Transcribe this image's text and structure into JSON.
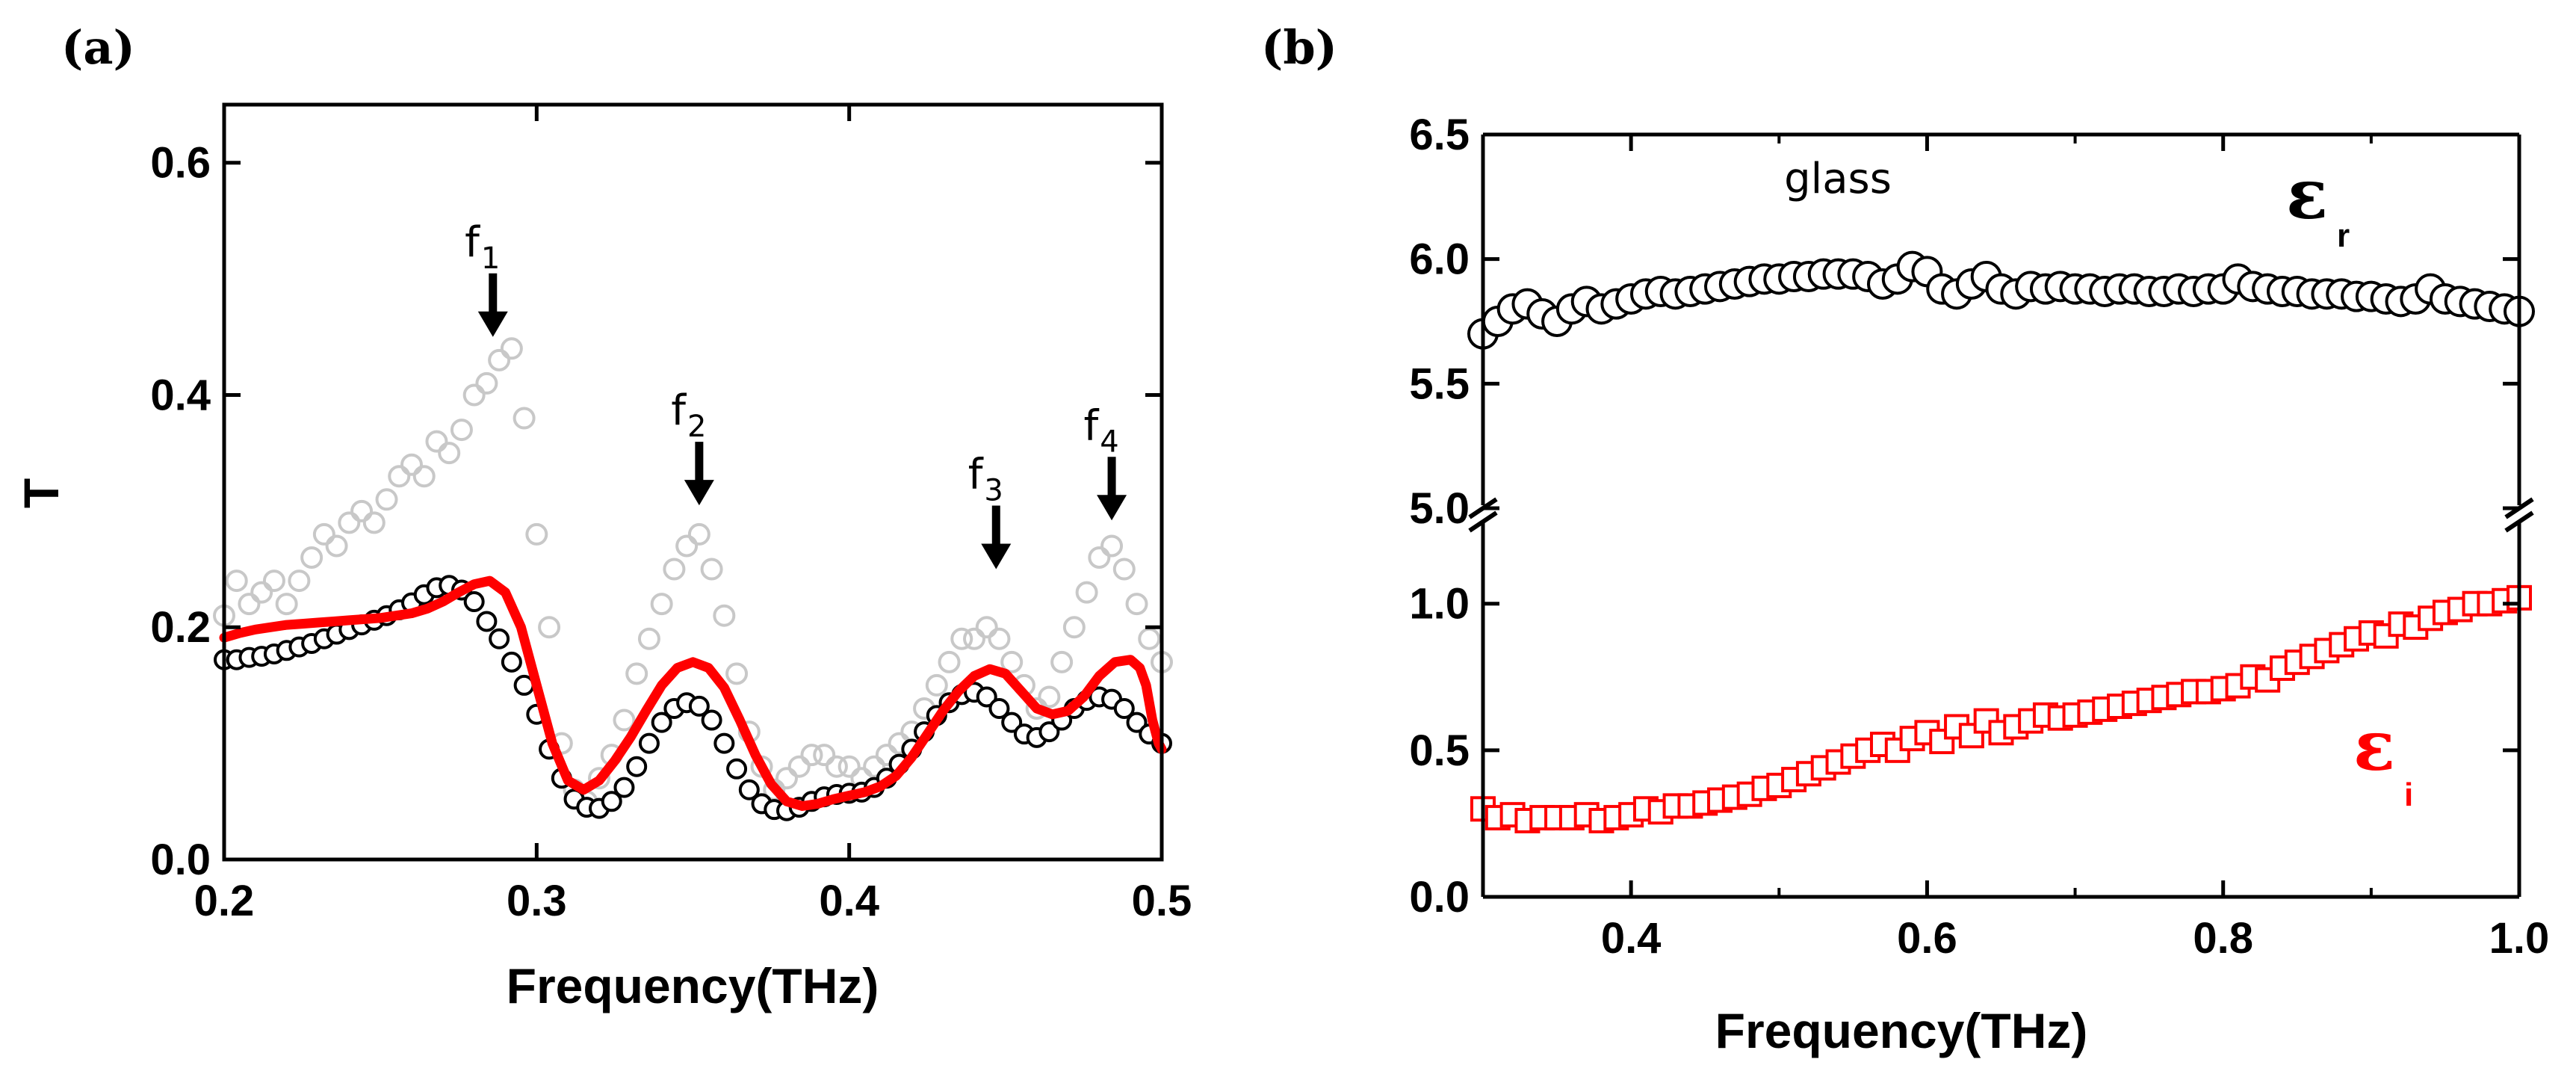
{
  "chart_data": [
    {
      "panel_label": "(a)",
      "type": "scatter",
      "xlabel": "Frequency(THz)",
      "ylabel": "T",
      "xlim": [
        0.2,
        0.5
      ],
      "ylim": [
        0.0,
        0.65
      ],
      "xticks": [
        "0.2",
        "0.3",
        "0.4",
        "0.5"
      ],
      "yticks": [
        "0.0",
        "0.2",
        "0.4",
        "0.6"
      ],
      "xtick_values": [
        0.2,
        0.3,
        0.4,
        0.5
      ],
      "ytick_values": [
        0.0,
        0.2,
        0.4,
        0.6
      ],
      "series": [
        {
          "name": "transmission (grey circles)",
          "style": "open-circle",
          "color": "#c8c8c8",
          "x": [
            0.2,
            0.204,
            0.208,
            0.212,
            0.216,
            0.22,
            0.224,
            0.228,
            0.232,
            0.236,
            0.24,
            0.244,
            0.248,
            0.252,
            0.256,
            0.26,
            0.264,
            0.268,
            0.272,
            0.276,
            0.28,
            0.284,
            0.288,
            0.292,
            0.296,
            0.3,
            0.304,
            0.308,
            0.312,
            0.316,
            0.32,
            0.324,
            0.328,
            0.332,
            0.336,
            0.34,
            0.344,
            0.348,
            0.352,
            0.356,
            0.36,
            0.364,
            0.368,
            0.372,
            0.376,
            0.38,
            0.384,
            0.388,
            0.392,
            0.396,
            0.4,
            0.404,
            0.408,
            0.412,
            0.416,
            0.42,
            0.424,
            0.428,
            0.432,
            0.436,
            0.44,
            0.444,
            0.448,
            0.452,
            0.456,
            0.46,
            0.464,
            0.468,
            0.472,
            0.476,
            0.48,
            0.484,
            0.488,
            0.492,
            0.496,
            0.5
          ],
          "values": [
            0.21,
            0.24,
            0.22,
            0.23,
            0.24,
            0.22,
            0.24,
            0.26,
            0.28,
            0.27,
            0.29,
            0.3,
            0.29,
            0.31,
            0.33,
            0.34,
            0.33,
            0.36,
            0.35,
            0.37,
            0.4,
            0.41,
            0.43,
            0.44,
            0.38,
            0.28,
            0.2,
            0.1,
            0.06,
            0.05,
            0.07,
            0.09,
            0.12,
            0.16,
            0.19,
            0.22,
            0.25,
            0.27,
            0.28,
            0.25,
            0.21,
            0.16,
            0.11,
            0.08,
            0.06,
            0.07,
            0.08,
            0.09,
            0.09,
            0.08,
            0.08,
            0.07,
            0.08,
            0.09,
            0.1,
            0.11,
            0.13,
            0.15,
            0.17,
            0.19,
            0.19,
            0.2,
            0.19,
            0.17,
            0.15,
            0.13,
            0.14,
            0.17,
            0.2,
            0.23,
            0.26,
            0.27,
            0.25,
            0.22,
            0.19,
            0.17
          ]
        },
        {
          "name": "transmission (black circles)",
          "style": "open-circle",
          "color": "#000000",
          "x": [
            0.2,
            0.204,
            0.208,
            0.212,
            0.216,
            0.22,
            0.224,
            0.228,
            0.232,
            0.236,
            0.24,
            0.244,
            0.248,
            0.252,
            0.256,
            0.26,
            0.264,
            0.268,
            0.272,
            0.276,
            0.28,
            0.284,
            0.288,
            0.292,
            0.296,
            0.3,
            0.304,
            0.308,
            0.312,
            0.316,
            0.32,
            0.324,
            0.328,
            0.332,
            0.336,
            0.34,
            0.344,
            0.348,
            0.352,
            0.356,
            0.36,
            0.364,
            0.368,
            0.372,
            0.376,
            0.38,
            0.384,
            0.388,
            0.392,
            0.396,
            0.4,
            0.404,
            0.408,
            0.412,
            0.416,
            0.42,
            0.424,
            0.428,
            0.432,
            0.436,
            0.44,
            0.444,
            0.448,
            0.452,
            0.456,
            0.46,
            0.464,
            0.468,
            0.472,
            0.476,
            0.48,
            0.484,
            0.488,
            0.492,
            0.496,
            0.5
          ],
          "values": [
            0.172,
            0.172,
            0.174,
            0.175,
            0.177,
            0.18,
            0.183,
            0.186,
            0.19,
            0.194,
            0.198,
            0.202,
            0.206,
            0.21,
            0.215,
            0.221,
            0.228,
            0.234,
            0.236,
            0.232,
            0.222,
            0.205,
            0.19,
            0.17,
            0.15,
            0.125,
            0.095,
            0.07,
            0.052,
            0.045,
            0.044,
            0.05,
            0.062,
            0.08,
            0.1,
            0.118,
            0.13,
            0.135,
            0.132,
            0.12,
            0.1,
            0.078,
            0.06,
            0.048,
            0.043,
            0.042,
            0.045,
            0.05,
            0.054,
            0.056,
            0.057,
            0.058,
            0.062,
            0.07,
            0.082,
            0.095,
            0.11,
            0.124,
            0.135,
            0.142,
            0.144,
            0.14,
            0.13,
            0.118,
            0.108,
            0.105,
            0.11,
            0.12,
            0.13,
            0.137,
            0.14,
            0.138,
            0.13,
            0.118,
            0.108,
            0.1
          ]
        },
        {
          "name": "fit (red line)",
          "style": "line",
          "color": "#ff0000",
          "x": [
            0.2,
            0.205,
            0.21,
            0.215,
            0.22,
            0.225,
            0.23,
            0.235,
            0.24,
            0.245,
            0.25,
            0.255,
            0.26,
            0.265,
            0.27,
            0.275,
            0.28,
            0.285,
            0.29,
            0.295,
            0.3,
            0.305,
            0.31,
            0.315,
            0.32,
            0.325,
            0.33,
            0.335,
            0.34,
            0.345,
            0.35,
            0.355,
            0.36,
            0.365,
            0.37,
            0.375,
            0.38,
            0.385,
            0.39,
            0.395,
            0.4,
            0.405,
            0.41,
            0.415,
            0.42,
            0.425,
            0.43,
            0.435,
            0.44,
            0.445,
            0.45,
            0.455,
            0.46,
            0.465,
            0.47,
            0.475,
            0.48,
            0.485,
            0.49,
            0.493,
            0.495,
            0.497,
            0.499,
            0.5
          ],
          "values": [
            0.191,
            0.195,
            0.198,
            0.2,
            0.202,
            0.203,
            0.204,
            0.205,
            0.206,
            0.207,
            0.208,
            0.21,
            0.212,
            0.216,
            0.222,
            0.23,
            0.237,
            0.24,
            0.23,
            0.2,
            0.15,
            0.1,
            0.068,
            0.06,
            0.068,
            0.085,
            0.105,
            0.128,
            0.15,
            0.165,
            0.17,
            0.165,
            0.148,
            0.12,
            0.09,
            0.065,
            0.05,
            0.046,
            0.048,
            0.052,
            0.055,
            0.058,
            0.063,
            0.072,
            0.088,
            0.108,
            0.128,
            0.145,
            0.158,
            0.164,
            0.16,
            0.145,
            0.13,
            0.125,
            0.128,
            0.14,
            0.158,
            0.17,
            0.172,
            0.165,
            0.15,
            0.12,
            0.1,
            0.095
          ]
        }
      ],
      "annotations": [
        {
          "label": "f",
          "sub": "1",
          "x": 0.286,
          "y_arrow_tip": 0.45
        },
        {
          "label": "f",
          "sub": "2",
          "x": 0.352,
          "y_arrow_tip": 0.305
        },
        {
          "label": "f",
          "sub": "3",
          "x": 0.447,
          "y_arrow_tip": 0.25
        },
        {
          "label": "f",
          "sub": "4",
          "x": 0.484,
          "y_arrow_tip": 0.292
        }
      ]
    },
    {
      "panel_label": "(b)",
      "type": "scatter",
      "xlabel": "Frequency(THz)",
      "ylabel": "",
      "xlim": [
        0.3,
        1.0
      ],
      "broken_y_axis": true,
      "upper_ylim": [
        5.0,
        6.5
      ],
      "lower_ylim": [
        0.0,
        1.3
      ],
      "xticks": [
        "0.4",
        "0.6",
        "0.8",
        "1.0"
      ],
      "xtick_values": [
        0.4,
        0.6,
        0.8,
        1.0
      ],
      "upper_yticks": [
        "5.0",
        "5.5",
        "6.0",
        "6.5"
      ],
      "upper_ytick_values": [
        5.0,
        5.5,
        6.0,
        6.5
      ],
      "lower_yticks": [
        "0.0",
        "0.5",
        "1.0"
      ],
      "lower_ytick_values": [
        0.0,
        0.5,
        1.0
      ],
      "text_label": "glass",
      "series": [
        {
          "name": "ε_r",
          "label_main": "ε",
          "label_sub": "r",
          "style": "open-circle",
          "color": "#000000",
          "axis": "upper",
          "x": [
            0.3,
            0.31,
            0.32,
            0.33,
            0.34,
            0.35,
            0.36,
            0.37,
            0.38,
            0.39,
            0.4,
            0.41,
            0.42,
            0.43,
            0.44,
            0.45,
            0.46,
            0.47,
            0.48,
            0.49,
            0.5,
            0.51,
            0.52,
            0.53,
            0.54,
            0.55,
            0.56,
            0.57,
            0.58,
            0.59,
            0.6,
            0.61,
            0.62,
            0.63,
            0.64,
            0.65,
            0.66,
            0.67,
            0.68,
            0.69,
            0.7,
            0.71,
            0.72,
            0.73,
            0.74,
            0.75,
            0.76,
            0.77,
            0.78,
            0.79,
            0.8,
            0.81,
            0.82,
            0.83,
            0.84,
            0.85,
            0.86,
            0.87,
            0.88,
            0.89,
            0.9,
            0.91,
            0.92,
            0.93,
            0.94,
            0.95,
            0.96,
            0.97,
            0.98,
            0.99,
            1.0
          ],
          "values": [
            5.7,
            5.75,
            5.8,
            5.82,
            5.78,
            5.75,
            5.8,
            5.83,
            5.8,
            5.82,
            5.84,
            5.86,
            5.87,
            5.86,
            5.87,
            5.88,
            5.89,
            5.9,
            5.91,
            5.92,
            5.92,
            5.93,
            5.93,
            5.94,
            5.94,
            5.94,
            5.93,
            5.9,
            5.92,
            5.97,
            5.95,
            5.88,
            5.86,
            5.9,
            5.93,
            5.88,
            5.86,
            5.89,
            5.88,
            5.89,
            5.88,
            5.88,
            5.87,
            5.88,
            5.88,
            5.87,
            5.87,
            5.88,
            5.87,
            5.88,
            5.88,
            5.92,
            5.89,
            5.88,
            5.87,
            5.87,
            5.86,
            5.86,
            5.86,
            5.85,
            5.85,
            5.84,
            5.83,
            5.84,
            5.88,
            5.84,
            5.83,
            5.82,
            5.81,
            5.8,
            5.79
          ]
        },
        {
          "name": "ε_i",
          "label_main": "ε",
          "label_sub": "i",
          "style": "open-square",
          "color": "#ff0000",
          "axis": "lower",
          "x": [
            0.3,
            0.31,
            0.32,
            0.33,
            0.34,
            0.35,
            0.36,
            0.37,
            0.38,
            0.39,
            0.4,
            0.41,
            0.42,
            0.43,
            0.44,
            0.45,
            0.46,
            0.47,
            0.48,
            0.49,
            0.5,
            0.51,
            0.52,
            0.53,
            0.54,
            0.55,
            0.56,
            0.57,
            0.58,
            0.59,
            0.6,
            0.61,
            0.62,
            0.63,
            0.64,
            0.65,
            0.66,
            0.67,
            0.68,
            0.69,
            0.7,
            0.71,
            0.72,
            0.73,
            0.74,
            0.75,
            0.76,
            0.77,
            0.78,
            0.79,
            0.8,
            0.81,
            0.82,
            0.83,
            0.84,
            0.85,
            0.86,
            0.87,
            0.88,
            0.89,
            0.9,
            0.91,
            0.92,
            0.93,
            0.94,
            0.95,
            0.96,
            0.97,
            0.98,
            0.99,
            1.0
          ],
          "values": [
            0.3,
            0.27,
            0.28,
            0.26,
            0.27,
            0.27,
            0.27,
            0.28,
            0.26,
            0.27,
            0.28,
            0.3,
            0.29,
            0.31,
            0.31,
            0.32,
            0.33,
            0.34,
            0.35,
            0.37,
            0.38,
            0.4,
            0.42,
            0.44,
            0.46,
            0.48,
            0.5,
            0.52,
            0.5,
            0.54,
            0.56,
            0.53,
            0.58,
            0.55,
            0.6,
            0.56,
            0.58,
            0.6,
            0.62,
            0.61,
            0.62,
            0.63,
            0.64,
            0.65,
            0.66,
            0.67,
            0.68,
            0.69,
            0.7,
            0.7,
            0.71,
            0.72,
            0.75,
            0.74,
            0.78,
            0.8,
            0.82,
            0.84,
            0.86,
            0.88,
            0.9,
            0.89,
            0.93,
            0.92,
            0.95,
            0.97,
            0.98,
            1.0,
            1.0,
            1.01,
            1.02
          ]
        }
      ]
    }
  ]
}
